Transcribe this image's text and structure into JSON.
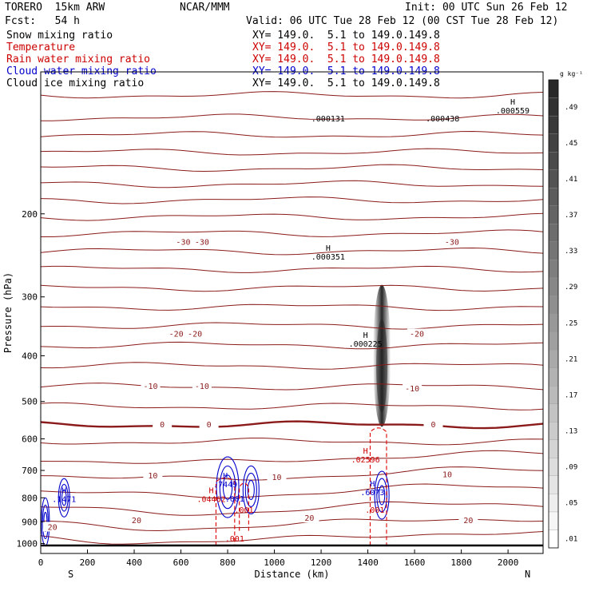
{
  "header": {
    "model": "TORERO  15km ARW",
    "center": "NCAR/MMM",
    "init": "Init: 00 UTC Sun 26 Feb 12",
    "fcst": "Fcst:   54 h",
    "valid": "Valid: 06 UTC Tue 28 Feb 12 (00 CST Tue 28 Feb 12)"
  },
  "legend": [
    {
      "name": "Snow mixing ratio",
      "xy": "XY= 149.0.  5.1 to 149.0.149.8",
      "color": "#000000"
    },
    {
      "name": "Temperature",
      "xy": "XY= 149.0.  5.1 to 149.0.149.8",
      "color": "#cc0000"
    },
    {
      "name": "Rain water mixing ratio",
      "xy": "XY= 149.0.  5.1 to 149.0.149.8",
      "color": "#cc0000"
    },
    {
      "name": "Cloud water mixing ratio",
      "xy": "XY= 149.0.  5.1 to 149.0.149.8",
      "color": "#0000cc"
    },
    {
      "name": "Cloud ice mixing ratio",
      "xy": "XY= 149.0.  5.1 to 149.0.149.8",
      "color": "#000000"
    }
  ],
  "chart_data": {
    "type": "contour",
    "xlabel": "Distance (km)",
    "ylabel": "Pressure (hPa)",
    "xlim": [
      0,
      2150
    ],
    "ylim": [
      1050,
      100
    ],
    "y_scale": "log",
    "x_ticks": [
      "0",
      "200",
      "400",
      "600",
      "800",
      "1000",
      "1200",
      "1400",
      "1600",
      "1800",
      "2000"
    ],
    "y_ticks": [
      "200",
      "300",
      "400",
      "500",
      "600",
      "700",
      "800",
      "900",
      "1000"
    ],
    "x_end_labels": {
      "left": "S",
      "right": "N"
    },
    "colorbar": {
      "unit": "g kg⁻¹",
      "labels": [
        ".01",
        ".05",
        ".09",
        ".13",
        ".17",
        ".21",
        ".25",
        ".29",
        ".33",
        ".37",
        ".41",
        ".45",
        ".49"
      ]
    },
    "temperature_labels": [
      {
        "x": 610,
        "p": 230,
        "text": "-30"
      },
      {
        "x": 690,
        "p": 230,
        "text": "-30"
      },
      {
        "x": 1760,
        "p": 230,
        "text": "-30"
      },
      {
        "x": 580,
        "p": 360,
        "text": "-20"
      },
      {
        "x": 660,
        "p": 360,
        "text": "-20"
      },
      {
        "x": 1610,
        "p": 360,
        "text": "-20"
      },
      {
        "x": 470,
        "p": 465,
        "text": "-10"
      },
      {
        "x": 690,
        "p": 465,
        "text": "-10"
      },
      {
        "x": 1590,
        "p": 470,
        "text": "-10"
      },
      {
        "x": 520,
        "p": 560,
        "text": "0"
      },
      {
        "x": 720,
        "p": 560,
        "text": "0"
      },
      {
        "x": 1680,
        "p": 560,
        "text": "0"
      },
      {
        "x": 480,
        "p": 720,
        "text": "10"
      },
      {
        "x": 1010,
        "p": 725,
        "text": "10"
      },
      {
        "x": 1740,
        "p": 715,
        "text": "10"
      },
      {
        "x": 50,
        "p": 925,
        "text": "20"
      },
      {
        "x": 410,
        "p": 895,
        "text": "20"
      },
      {
        "x": 1150,
        "p": 885,
        "text": "20"
      },
      {
        "x": 1830,
        "p": 895,
        "text": "20"
      }
    ],
    "max_labels": [
      {
        "x": 1230,
        "p": 245,
        "text": "H .000351",
        "color": "#000000"
      },
      {
        "x": 1390,
        "p": 375,
        "text": "H .000225",
        "color": "#000000"
      },
      {
        "x": 1390,
        "p": 660,
        "text": "H .02596",
        "color": "#cc0000"
      },
      {
        "x": 790,
        "p": 745,
        "text": "H .7449",
        "color": "#0000cc"
      },
      {
        "x": 730,
        "p": 800,
        "text": "H .04462",
        "color": "#cc0000"
      },
      {
        "x": 100,
        "p": 800,
        "text": "H .1471",
        "color": "#0000cc"
      },
      {
        "x": 1420,
        "p": 775,
        "text": "H .6073",
        "color": "#0000cc"
      },
      {
        "x": 2020,
        "p": 120,
        "text": "H .000559",
        "color": "#000000"
      },
      {
        "x": 1720,
        "p": 125,
        "text": ".000438",
        "color": "#000000"
      },
      {
        "x": 1230,
        "p": 125,
        "text": ".000131",
        "color": "#000000"
      }
    ],
    "small_labels": [
      {
        "x": 830,
        "p": 815,
        "text": ".001",
        "color": "#0000cc"
      },
      {
        "x": 870,
        "p": 860,
        "text": ".001",
        "color": "#cc0000"
      },
      {
        "x": 1430,
        "p": 860,
        "text": ".001",
        "color": "#cc0000"
      },
      {
        "x": 830,
        "p": 990,
        "text": ".001",
        "color": "#cc0000"
      }
    ]
  }
}
